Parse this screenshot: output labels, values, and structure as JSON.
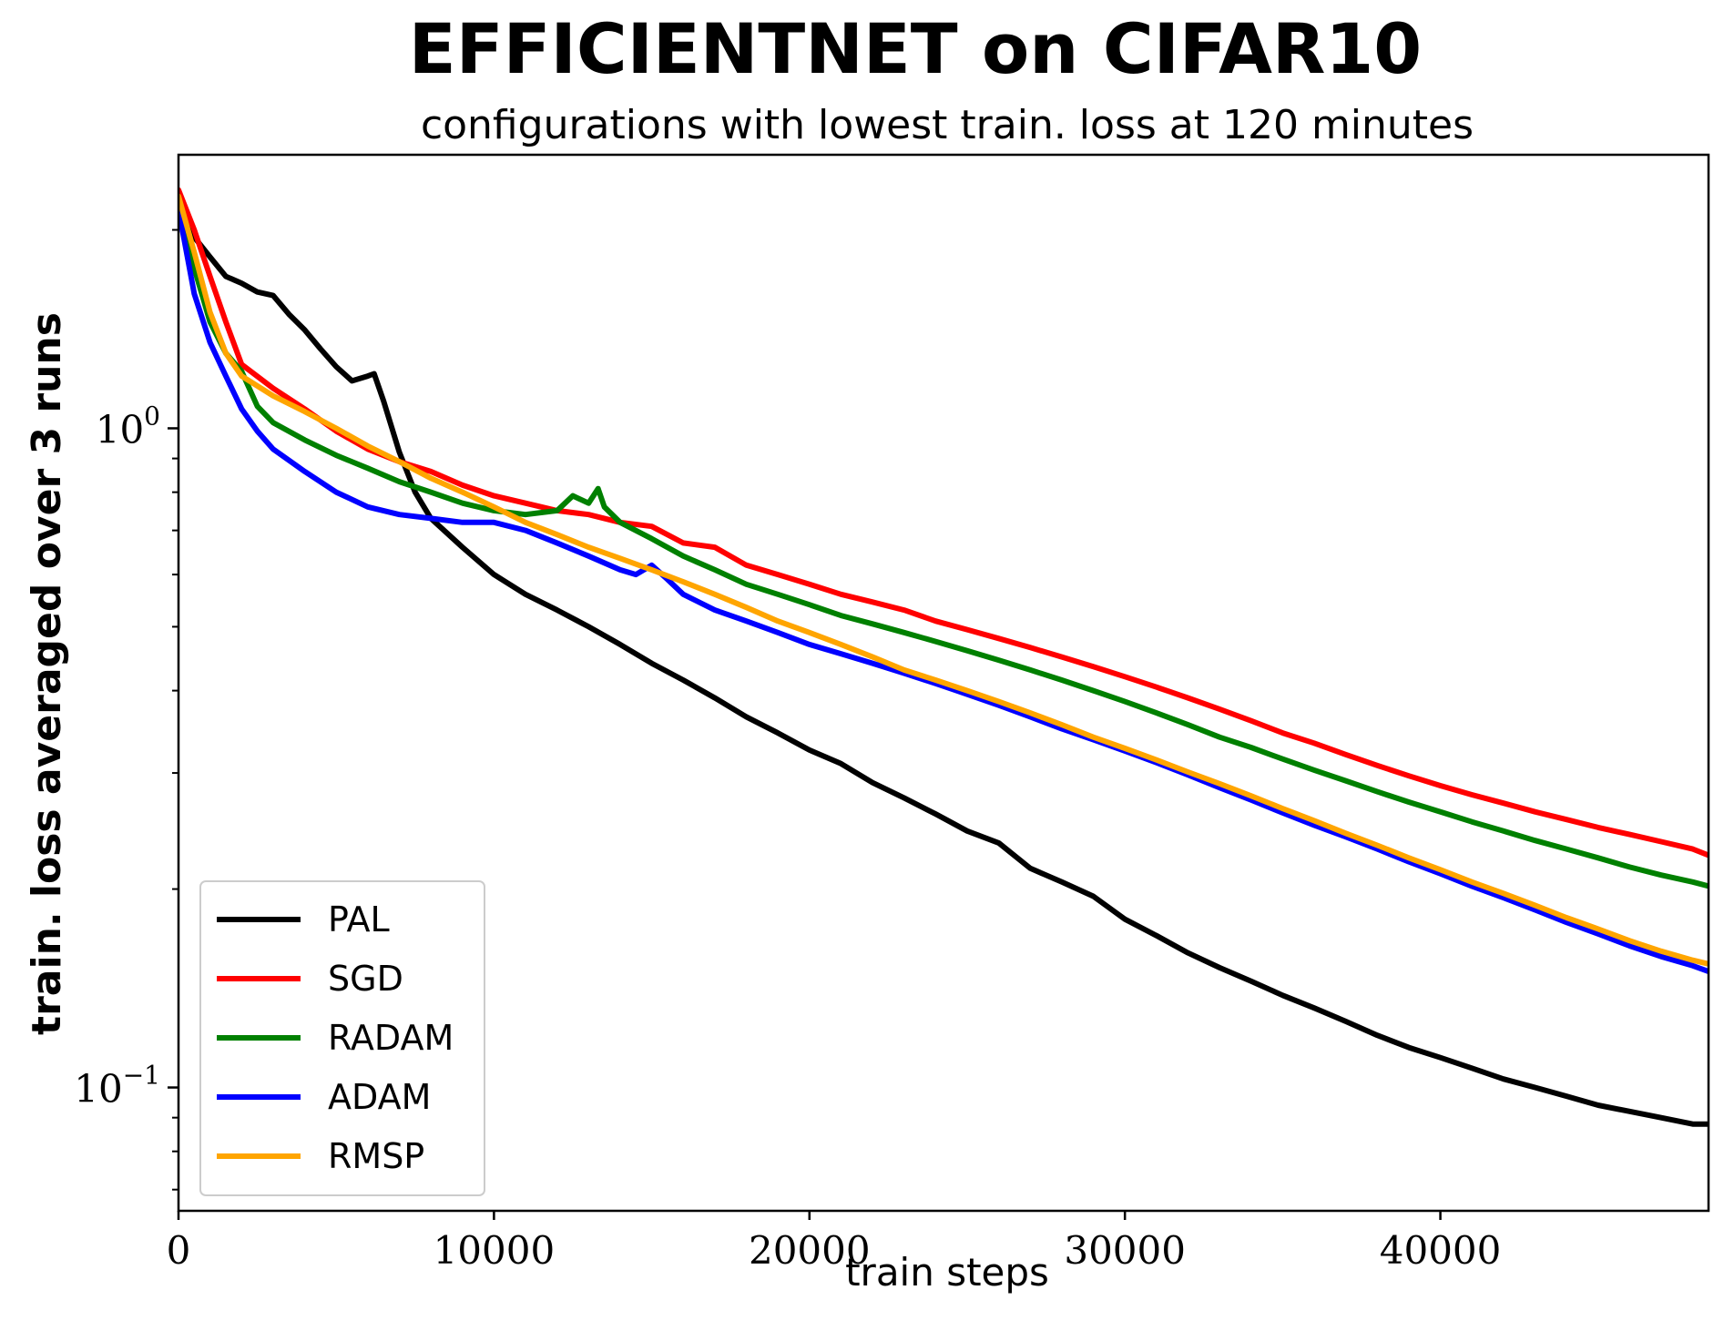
{
  "chart_data": {
    "type": "line",
    "title": "EFFICIENTNET on CIFAR10",
    "subtitle": "configurations with lowest train. loss at 120 minutes",
    "xlabel": "train steps",
    "ylabel": "train. loss averaged over 3 runs",
    "xlim": [
      0,
      48500
    ],
    "ylim": [
      0.065,
      2.6
    ],
    "yscale": "log",
    "xticks": [
      0,
      10000,
      20000,
      30000,
      40000
    ],
    "xtick_labels": [
      "0",
      "10000",
      "20000",
      "30000",
      "40000"
    ],
    "yticks": [
      {
        "value": 1.0,
        "base": "10",
        "exp": "0"
      },
      {
        "value": 0.1,
        "base": "10",
        "exp": "−1"
      }
    ],
    "grid": false,
    "legend_position": "lower-left",
    "series": [
      {
        "name": "PAL",
        "color": "#000000",
        "points": [
          [
            0,
            2.25
          ],
          [
            500,
            1.95
          ],
          [
            1000,
            1.82
          ],
          [
            1500,
            1.7
          ],
          [
            2000,
            1.66
          ],
          [
            2500,
            1.61
          ],
          [
            3000,
            1.59
          ],
          [
            3500,
            1.49
          ],
          [
            4000,
            1.41
          ],
          [
            4500,
            1.32
          ],
          [
            5000,
            1.24
          ],
          [
            5500,
            1.18
          ],
          [
            6000,
            1.2
          ],
          [
            6200,
            1.21
          ],
          [
            6500,
            1.1
          ],
          [
            7000,
            0.92
          ],
          [
            7500,
            0.8
          ],
          [
            8000,
            0.73
          ],
          [
            9000,
            0.66
          ],
          [
            10000,
            0.6
          ],
          [
            11000,
            0.56
          ],
          [
            12000,
            0.53
          ],
          [
            13000,
            0.5
          ],
          [
            14000,
            0.47
          ],
          [
            15000,
            0.44
          ],
          [
            16000,
            0.415
          ],
          [
            17000,
            0.39
          ],
          [
            18000,
            0.365
          ],
          [
            19000,
            0.345
          ],
          [
            20000,
            0.325
          ],
          [
            21000,
            0.31
          ],
          [
            22000,
            0.29
          ],
          [
            23000,
            0.275
          ],
          [
            24000,
            0.26
          ],
          [
            25000,
            0.245
          ],
          [
            26000,
            0.235
          ],
          [
            27000,
            0.215
          ],
          [
            28000,
            0.205
          ],
          [
            29000,
            0.195
          ],
          [
            30000,
            0.18
          ],
          [
            31000,
            0.17
          ],
          [
            32000,
            0.16
          ],
          [
            33000,
            0.152
          ],
          [
            34000,
            0.145
          ],
          [
            35000,
            0.138
          ],
          [
            36000,
            0.132
          ],
          [
            37000,
            0.126
          ],
          [
            38000,
            0.12
          ],
          [
            39000,
            0.115
          ],
          [
            40000,
            0.111
          ],
          [
            41000,
            0.107
          ],
          [
            42000,
            0.103
          ],
          [
            43000,
            0.1
          ],
          [
            44000,
            0.097
          ],
          [
            45000,
            0.094
          ],
          [
            46000,
            0.092
          ],
          [
            47000,
            0.09
          ],
          [
            48000,
            0.088
          ],
          [
            48500,
            0.088
          ]
        ]
      },
      {
        "name": "SGD",
        "color": "#ff0000",
        "points": [
          [
            0,
            2.3
          ],
          [
            500,
            2.0
          ],
          [
            1000,
            1.7
          ],
          [
            1500,
            1.45
          ],
          [
            2000,
            1.25
          ],
          [
            3000,
            1.15
          ],
          [
            4000,
            1.07
          ],
          [
            5000,
            0.99
          ],
          [
            6000,
            0.93
          ],
          [
            7000,
            0.89
          ],
          [
            8000,
            0.86
          ],
          [
            9000,
            0.82
          ],
          [
            10000,
            0.79
          ],
          [
            11000,
            0.77
          ],
          [
            12000,
            0.75
          ],
          [
            13000,
            0.74
          ],
          [
            14000,
            0.72
          ],
          [
            15000,
            0.71
          ],
          [
            16000,
            0.67
          ],
          [
            17000,
            0.66
          ],
          [
            18000,
            0.62
          ],
          [
            19000,
            0.6
          ],
          [
            20000,
            0.58
          ],
          [
            21000,
            0.56
          ],
          [
            22000,
            0.545
          ],
          [
            23000,
            0.53
          ],
          [
            24000,
            0.51
          ],
          [
            25000,
            0.495
          ],
          [
            26000,
            0.48
          ],
          [
            27000,
            0.465
          ],
          [
            28000,
            0.45
          ],
          [
            29000,
            0.435
          ],
          [
            30000,
            0.42
          ],
          [
            31000,
            0.405
          ],
          [
            32000,
            0.39
          ],
          [
            33000,
            0.375
          ],
          [
            34000,
            0.36
          ],
          [
            35000,
            0.345
          ],
          [
            36000,
            0.333
          ],
          [
            37000,
            0.32
          ],
          [
            38000,
            0.308
          ],
          [
            39000,
            0.297
          ],
          [
            40000,
            0.287
          ],
          [
            41000,
            0.278
          ],
          [
            42000,
            0.27
          ],
          [
            43000,
            0.262
          ],
          [
            44000,
            0.255
          ],
          [
            45000,
            0.248
          ],
          [
            46000,
            0.242
          ],
          [
            47000,
            0.236
          ],
          [
            48000,
            0.23
          ],
          [
            48500,
            0.225
          ]
        ]
      },
      {
        "name": "RADAM",
        "color": "#008000",
        "points": [
          [
            0,
            2.2
          ],
          [
            500,
            1.75
          ],
          [
            1000,
            1.45
          ],
          [
            1500,
            1.3
          ],
          [
            2000,
            1.22
          ],
          [
            2500,
            1.08
          ],
          [
            3000,
            1.02
          ],
          [
            4000,
            0.96
          ],
          [
            5000,
            0.91
          ],
          [
            6000,
            0.87
          ],
          [
            7000,
            0.83
          ],
          [
            8000,
            0.8
          ],
          [
            9000,
            0.77
          ],
          [
            10000,
            0.75
          ],
          [
            11000,
            0.74
          ],
          [
            12000,
            0.75
          ],
          [
            12500,
            0.79
          ],
          [
            13000,
            0.77
          ],
          [
            13300,
            0.81
          ],
          [
            13500,
            0.76
          ],
          [
            14000,
            0.72
          ],
          [
            15000,
            0.68
          ],
          [
            16000,
            0.64
          ],
          [
            17000,
            0.61
          ],
          [
            18000,
            0.58
          ],
          [
            19000,
            0.56
          ],
          [
            20000,
            0.54
          ],
          [
            21000,
            0.52
          ],
          [
            22000,
            0.505
          ],
          [
            23000,
            0.49
          ],
          [
            24000,
            0.475
          ],
          [
            25000,
            0.46
          ],
          [
            26000,
            0.445
          ],
          [
            27000,
            0.43
          ],
          [
            28000,
            0.415
          ],
          [
            29000,
            0.4
          ],
          [
            30000,
            0.385
          ],
          [
            31000,
            0.37
          ],
          [
            32000,
            0.355
          ],
          [
            33000,
            0.34
          ],
          [
            34000,
            0.328
          ],
          [
            35000,
            0.315
          ],
          [
            36000,
            0.303
          ],
          [
            37000,
            0.292
          ],
          [
            38000,
            0.281
          ],
          [
            39000,
            0.271
          ],
          [
            40000,
            0.262
          ],
          [
            41000,
            0.253
          ],
          [
            42000,
            0.245
          ],
          [
            43000,
            0.237
          ],
          [
            44000,
            0.23
          ],
          [
            45000,
            0.223
          ],
          [
            46000,
            0.216
          ],
          [
            47000,
            0.21
          ],
          [
            48000,
            0.205
          ],
          [
            48500,
            0.202
          ]
        ]
      },
      {
        "name": "ADAM",
        "color": "#0000ff",
        "points": [
          [
            0,
            2.15
          ],
          [
            500,
            1.6
          ],
          [
            1000,
            1.35
          ],
          [
            1500,
            1.2
          ],
          [
            2000,
            1.07
          ],
          [
            2500,
            0.99
          ],
          [
            3000,
            0.93
          ],
          [
            4000,
            0.86
          ],
          [
            5000,
            0.8
          ],
          [
            6000,
            0.76
          ],
          [
            7000,
            0.74
          ],
          [
            8000,
            0.73
          ],
          [
            9000,
            0.72
          ],
          [
            10000,
            0.72
          ],
          [
            11000,
            0.7
          ],
          [
            12000,
            0.67
          ],
          [
            13000,
            0.64
          ],
          [
            14000,
            0.61
          ],
          [
            14500,
            0.6
          ],
          [
            15000,
            0.62
          ],
          [
            15500,
            0.59
          ],
          [
            16000,
            0.56
          ],
          [
            17000,
            0.53
          ],
          [
            18000,
            0.51
          ],
          [
            19000,
            0.49
          ],
          [
            20000,
            0.47
          ],
          [
            21000,
            0.455
          ],
          [
            22000,
            0.44
          ],
          [
            23000,
            0.425
          ],
          [
            24000,
            0.41
          ],
          [
            25000,
            0.395
          ],
          [
            26000,
            0.38
          ],
          [
            27000,
            0.365
          ],
          [
            28000,
            0.35
          ],
          [
            29000,
            0.337
          ],
          [
            30000,
            0.324
          ],
          [
            31000,
            0.311
          ],
          [
            32000,
            0.298
          ],
          [
            33000,
            0.285
          ],
          [
            34000,
            0.273
          ],
          [
            35000,
            0.261
          ],
          [
            36000,
            0.25
          ],
          [
            37000,
            0.24
          ],
          [
            38000,
            0.23
          ],
          [
            39000,
            0.22
          ],
          [
            40000,
            0.211
          ],
          [
            41000,
            0.202
          ],
          [
            42000,
            0.194
          ],
          [
            43000,
            0.186
          ],
          [
            44000,
            0.178
          ],
          [
            45000,
            0.171
          ],
          [
            46000,
            0.164
          ],
          [
            47000,
            0.158
          ],
          [
            48000,
            0.153
          ],
          [
            48500,
            0.15
          ]
        ]
      },
      {
        "name": "RMSP",
        "color": "#ffa500",
        "points": [
          [
            0,
            2.25
          ],
          [
            500,
            1.85
          ],
          [
            1000,
            1.5
          ],
          [
            1500,
            1.3
          ],
          [
            2000,
            1.2
          ],
          [
            3000,
            1.12
          ],
          [
            4000,
            1.06
          ],
          [
            5000,
            1.0
          ],
          [
            6000,
            0.94
          ],
          [
            7000,
            0.89
          ],
          [
            8000,
            0.84
          ],
          [
            9000,
            0.8
          ],
          [
            10000,
            0.76
          ],
          [
            11000,
            0.72
          ],
          [
            12000,
            0.69
          ],
          [
            13000,
            0.66
          ],
          [
            14000,
            0.635
          ],
          [
            15000,
            0.61
          ],
          [
            16000,
            0.585
          ],
          [
            17000,
            0.56
          ],
          [
            18000,
            0.535
          ],
          [
            19000,
            0.51
          ],
          [
            20000,
            0.49
          ],
          [
            21000,
            0.47
          ],
          [
            22000,
            0.45
          ],
          [
            23000,
            0.43
          ],
          [
            24000,
            0.415
          ],
          [
            25000,
            0.4
          ],
          [
            26000,
            0.385
          ],
          [
            27000,
            0.37
          ],
          [
            28000,
            0.355
          ],
          [
            29000,
            0.34
          ],
          [
            30000,
            0.327
          ],
          [
            31000,
            0.314
          ],
          [
            32000,
            0.301
          ],
          [
            33000,
            0.289
          ],
          [
            34000,
            0.277
          ],
          [
            35000,
            0.265
          ],
          [
            36000,
            0.254
          ],
          [
            37000,
            0.243
          ],
          [
            38000,
            0.233
          ],
          [
            39000,
            0.223
          ],
          [
            40000,
            0.214
          ],
          [
            41000,
            0.205
          ],
          [
            42000,
            0.197
          ],
          [
            43000,
            0.189
          ],
          [
            44000,
            0.181
          ],
          [
            45000,
            0.174
          ],
          [
            46000,
            0.167
          ],
          [
            47000,
            0.161
          ],
          [
            48000,
            0.156
          ],
          [
            48500,
            0.154
          ]
        ]
      }
    ]
  }
}
